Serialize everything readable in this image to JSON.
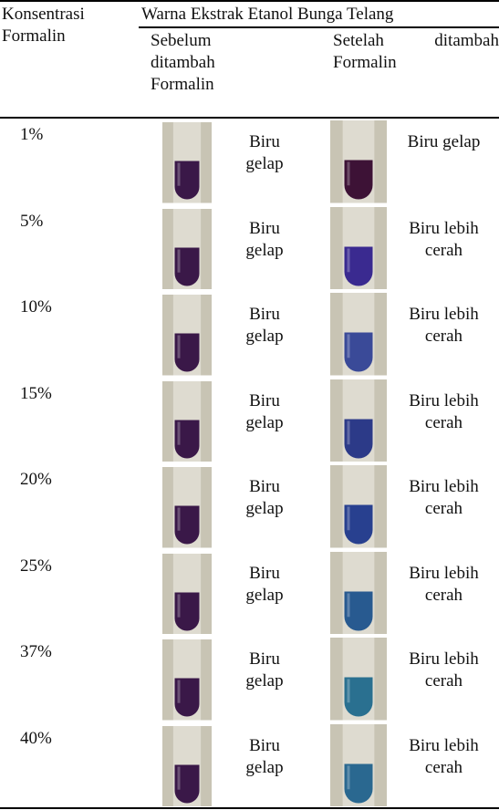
{
  "header": {
    "col1": "Konsentrasi Formalin",
    "group": "Warna Ekstrak Etanol Bunga Telang",
    "before": "Sebelum ditambah Formalin",
    "after": "Setelah ditambah Formalin"
  },
  "table": {
    "rows": [
      {
        "concentration": "1%",
        "before": "Biru gelap",
        "after": "Biru gelap",
        "before_color": "#3a1848",
        "after_color": "#3d1236"
      },
      {
        "concentration": "5%",
        "before": "Biru gelap",
        "after": "Biru lebih cerah",
        "before_color": "#3a1848",
        "after_color": "#3a2a90"
      },
      {
        "concentration": "10%",
        "before": "Biru gelap",
        "after": "Biru lebih cerah",
        "before_color": "#3a1848",
        "after_color": "#3a4a98"
      },
      {
        "concentration": "15%",
        "before": "Biru gelap",
        "after": "Biru lebih cerah",
        "before_color": "#3a1848",
        "after_color": "#2c3a88"
      },
      {
        "concentration": "20%",
        "before": "Biru gelap",
        "after": "Biru lebih cerah",
        "before_color": "#3a1848",
        "after_color": "#28408f"
      },
      {
        "concentration": "25%",
        "before": "Biru gelap",
        "after": "Biru lebih cerah",
        "before_color": "#3a1848",
        "after_color": "#285a90"
      },
      {
        "concentration": "37%",
        "before": "Biru gelap",
        "after": "Biru lebih cerah",
        "before_color": "#3a1848",
        "after_color": "#2a7090"
      },
      {
        "concentration": "40%",
        "before": "Biru gelap",
        "after": "Biru lebih cerah",
        "before_color": "#3a1848",
        "after_color": "#2a6890"
      }
    ]
  }
}
